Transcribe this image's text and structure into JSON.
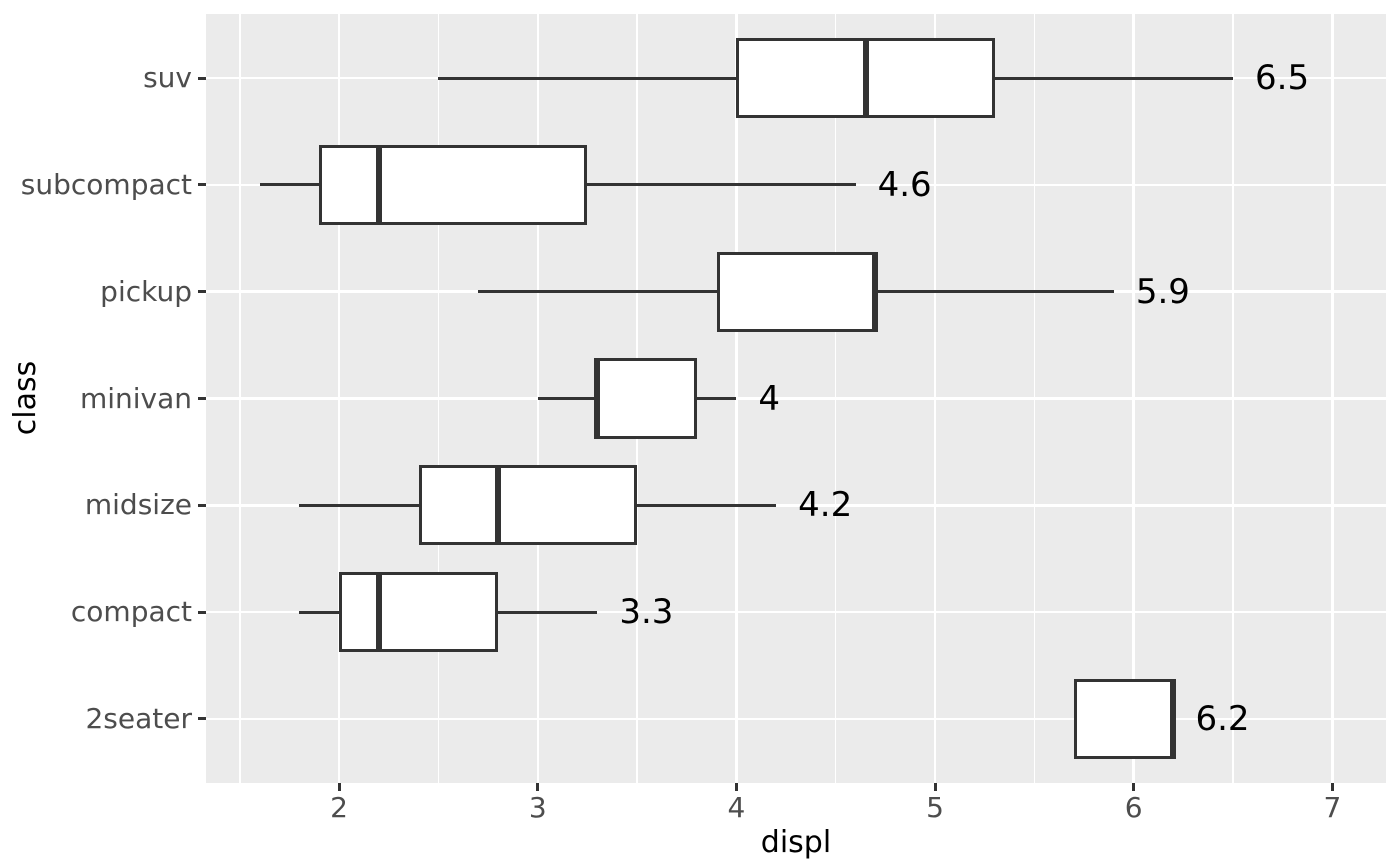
{
  "figure": {
    "background": "#FFFFFF",
    "panel_background": "#EBEBEB",
    "grid_color": "#FFFFFF",
    "box_stroke_color": "#333333",
    "box_fill_color": "#FFFFFF",
    "tick_mark_color": "#333333",
    "axis_text_color": "#4D4D4D",
    "axis_title_color": "#000000",
    "value_label_color": "#000000"
  },
  "chart_data": {
    "type": "boxplot",
    "orientation": "horizontal",
    "title": "",
    "xlabel": "displ",
    "ylabel": "class",
    "xlim": [
      1.33,
      7.27
    ],
    "x_major_ticks": [
      2,
      3,
      4,
      5,
      6,
      7
    ],
    "x_minor_gridlines": [
      1.5,
      2.5,
      3.5,
      4.5,
      5.5,
      6.5
    ],
    "grid": "white major+minor vertical, white major horizontal, no legend",
    "legend_position": "none",
    "categories_top_to_bottom": [
      "suv",
      "subcompact",
      "pickup",
      "minivan",
      "midsize",
      "compact",
      "2seater"
    ],
    "band_padding": 0.6,
    "box_relative_height": 0.75,
    "series": [
      {
        "class": "suv",
        "whisker_min": 2.5,
        "q1": 4.0,
        "median": 4.65,
        "q3": 5.3,
        "whisker_max": 6.5,
        "label": "6.5"
      },
      {
        "class": "subcompact",
        "whisker_min": 1.6,
        "q1": 1.9,
        "median": 2.2,
        "q3": 3.25,
        "whisker_max": 4.6,
        "label": "4.6"
      },
      {
        "class": "pickup",
        "whisker_min": 2.7,
        "q1": 3.9,
        "median": 4.7,
        "q3": 4.7,
        "whisker_max": 5.9,
        "label": "5.9"
      },
      {
        "class": "minivan",
        "whisker_min": 3.0,
        "q1": 3.3,
        "median": 3.3,
        "q3": 3.8,
        "whisker_max": 4.0,
        "label": "4"
      },
      {
        "class": "midsize",
        "whisker_min": 1.8,
        "q1": 2.4,
        "median": 2.8,
        "q3": 3.5,
        "whisker_max": 4.2,
        "label": "4.2"
      },
      {
        "class": "compact",
        "whisker_min": 1.8,
        "q1": 2.0,
        "median": 2.2,
        "q3": 2.8,
        "whisker_max": 3.3,
        "label": "3.3"
      },
      {
        "class": "2seater",
        "whisker_min": 5.7,
        "q1": 5.7,
        "median": 6.2,
        "q3": 6.2,
        "whisker_max": 6.2,
        "label": "6.2"
      }
    ]
  }
}
